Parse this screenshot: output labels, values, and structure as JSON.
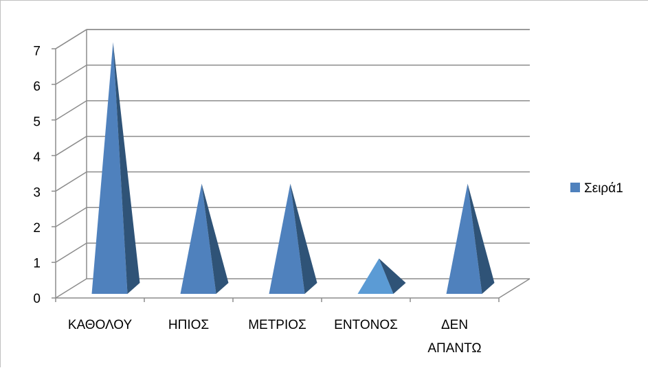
{
  "chart_data": {
    "type": "bar",
    "style": "3d-pyramid",
    "categories": [
      [
        "ΚΑΘΟΛΟΥ"
      ],
      [
        "ΗΠΙΟΣ"
      ],
      [
        "ΜΕΤΡΙΟΣ"
      ],
      [
        "ΕΝΤΟΝΟΣ"
      ],
      [
        "ΔΕΝ",
        "ΑΠΑΝΤΩ"
      ]
    ],
    "series": [
      {
        "name": "Σειρά1",
        "values": [
          7,
          3,
          3,
          1,
          3
        ],
        "color": "#4f81bd"
      }
    ],
    "highlight_color": "#5b9bd5",
    "ylim": [
      0,
      7
    ],
    "yticks": [
      "0",
      "1",
      "2",
      "3",
      "4",
      "5",
      "6",
      "7"
    ],
    "grid": true,
    "legend_position": "right"
  }
}
